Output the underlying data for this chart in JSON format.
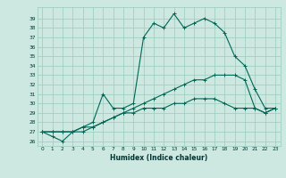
{
  "xlabel": "Humidex (Indice chaleur)",
  "background_color": "#cce8e0",
  "grid_color": "#99ccbb",
  "line_color": "#006655",
  "x_values": [
    0,
    1,
    2,
    3,
    4,
    5,
    6,
    7,
    8,
    9,
    10,
    11,
    12,
    13,
    14,
    15,
    16,
    17,
    18,
    19,
    20,
    21,
    22,
    23
  ],
  "series1": [
    27.0,
    26.5,
    26.0,
    27.0,
    27.5,
    28.0,
    31.0,
    29.5,
    29.5,
    30.0,
    37.0,
    38.5,
    38.0,
    39.5,
    38.0,
    38.5,
    39.0,
    38.5,
    37.5,
    35.0,
    34.0,
    31.5,
    29.5,
    29.5
  ],
  "series2": [
    27.0,
    27.0,
    27.0,
    27.0,
    27.5,
    27.5,
    28.0,
    28.5,
    29.0,
    29.0,
    29.5,
    29.5,
    29.5,
    30.0,
    30.0,
    30.5,
    30.5,
    30.5,
    30.0,
    29.5,
    29.5,
    29.5,
    29.0,
    29.5
  ],
  "series3": [
    27.0,
    27.0,
    27.0,
    27.0,
    27.0,
    27.5,
    28.0,
    28.5,
    29.0,
    29.5,
    30.0,
    30.5,
    31.0,
    31.5,
    32.0,
    32.5,
    32.5,
    33.0,
    33.0,
    33.0,
    32.5,
    29.5,
    29.0,
    29.5
  ],
  "ylim": [
    25.5,
    40.2
  ],
  "xlim": [
    -0.5,
    23.5
  ],
  "yticks": [
    26,
    27,
    28,
    29,
    30,
    31,
    32,
    33,
    34,
    35,
    36,
    37,
    38,
    39
  ],
  "xticks": [
    0,
    1,
    2,
    3,
    4,
    5,
    6,
    7,
    8,
    9,
    10,
    11,
    12,
    13,
    14,
    15,
    16,
    17,
    18,
    19,
    20,
    21,
    22,
    23
  ]
}
